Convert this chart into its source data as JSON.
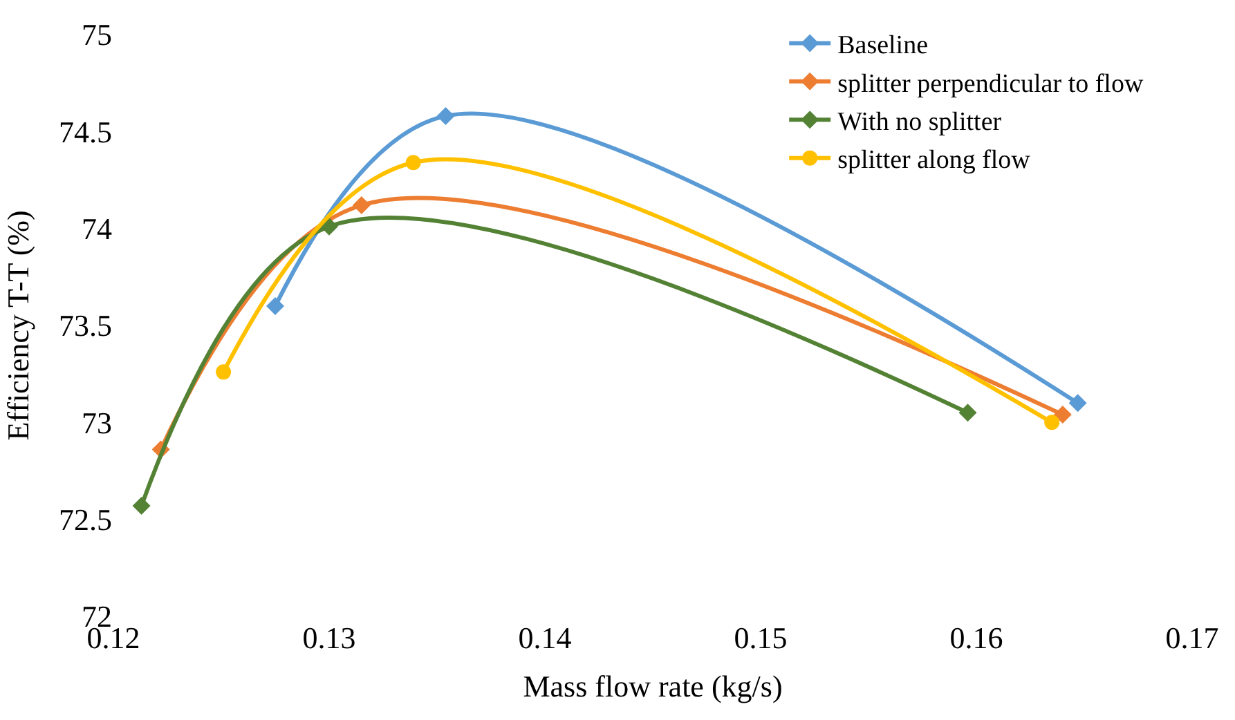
{
  "chart_data": {
    "type": "line",
    "xlabel": "Mass flow rate (kg/s)",
    "ylabel": "Efficiency T-T (%)",
    "xlim": [
      0.12,
      0.17
    ],
    "xticks": [
      0.12,
      0.13,
      0.14,
      0.15,
      0.16,
      0.17
    ],
    "ylim": [
      72,
      75
    ],
    "yticks": [
      72,
      72.5,
      73,
      73.5,
      74,
      74.5,
      75
    ],
    "grid": false,
    "legend": "top right",
    "line_style": "solid",
    "series": [
      {
        "name": "Baseline",
        "color": "#5b9bd5",
        "marker": "diamond",
        "x": [
          0.1275,
          0.1354,
          0.1647
        ],
        "values": [
          73.6,
          74.58,
          73.1
        ]
      },
      {
        "name": "splitter perpendicular to flow",
        "color": "#ed7d31",
        "marker": "diamond",
        "x": [
          0.1222,
          0.1315,
          0.164
        ],
        "values": [
          72.86,
          74.12,
          73.04
        ]
      },
      {
        "name": "With no splitter",
        "color": "#548235",
        "marker": "diamond",
        "x": [
          0.1213,
          0.13,
          0.1596
        ],
        "values": [
          72.57,
          74.01,
          73.05
        ]
      },
      {
        "name": "splitter along flow",
        "color": "#ffc000",
        "marker": "circle",
        "x": [
          0.1251,
          0.1339,
          0.1635
        ],
        "values": [
          73.26,
          74.34,
          73.0
        ]
      }
    ]
  }
}
